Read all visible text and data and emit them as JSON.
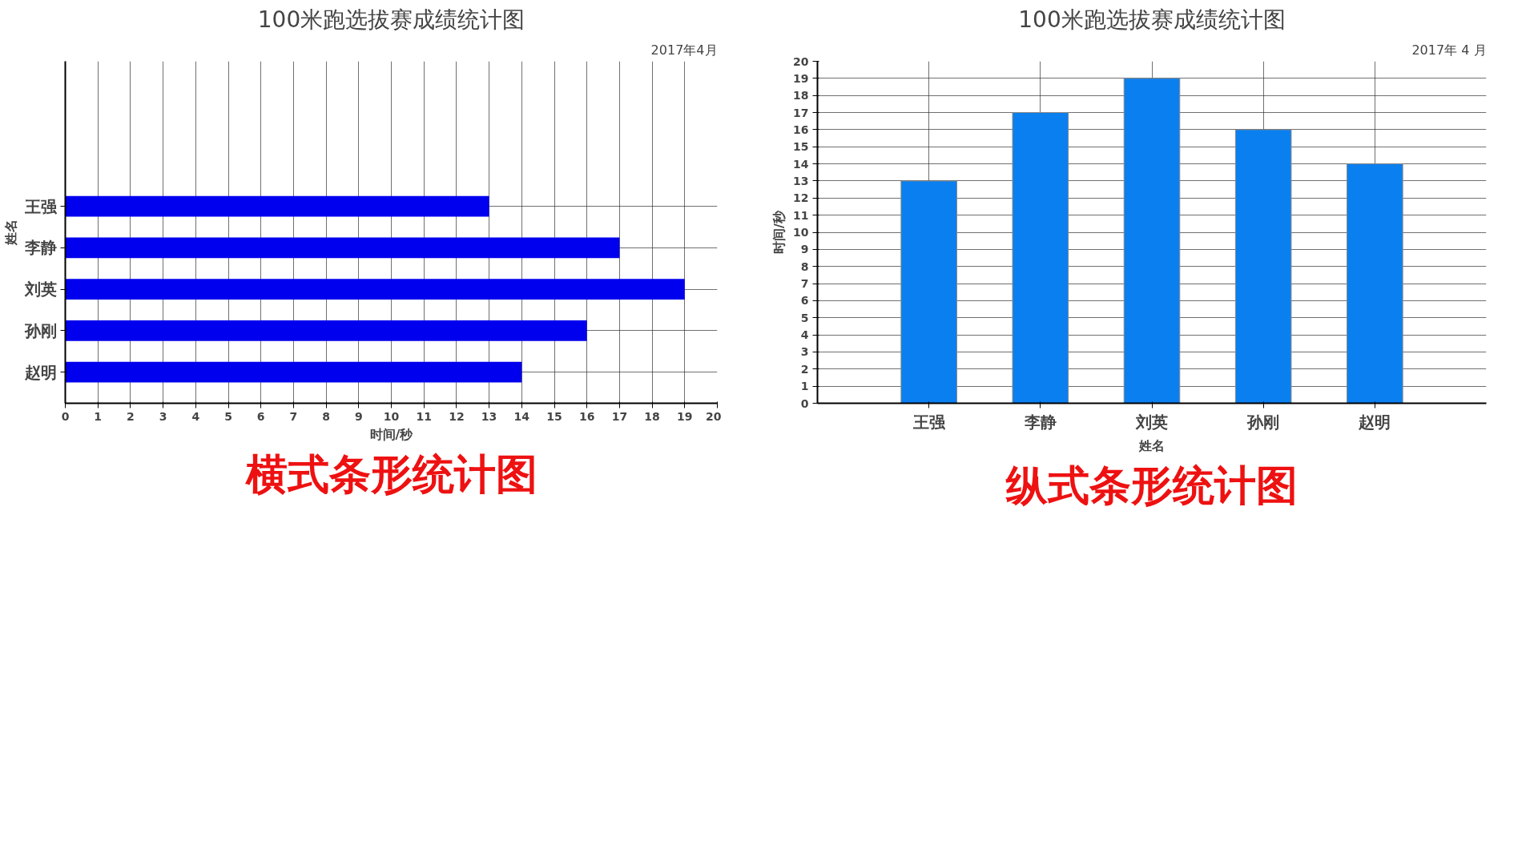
{
  "chart_data": [
    {
      "type": "bar",
      "orientation": "horizontal",
      "title": "100米跑选拔赛成绩统计图",
      "subtitle": "2017年4月",
      "xlabel": "时间/秒",
      "ylabel": "姓名",
      "categories": [
        "王强",
        "李静",
        "刘英",
        "孙刚",
        "赵明"
      ],
      "values": [
        13,
        17,
        19,
        16,
        14
      ],
      "color": "#0000ee",
      "xlim": [
        0,
        20
      ],
      "xticks": [
        0,
        1,
        2,
        3,
        4,
        5,
        6,
        7,
        8,
        9,
        10,
        11,
        12,
        13,
        14,
        15,
        16,
        17,
        18,
        19,
        20
      ],
      "grid": true,
      "annotations": [
        "横式条形统计图"
      ]
    },
    {
      "type": "bar",
      "title": "100米跑选拔赛成绩统计图",
      "subtitle": "2017年 4 月",
      "xlabel": "姓名",
      "ylabel": "时间/秒",
      "categories": [
        "王强",
        "李静",
        "刘英",
        "孙刚",
        "赵明"
      ],
      "values": [
        13,
        17,
        19,
        16,
        14
      ],
      "color": "#0a7ff0",
      "ylim": [
        0,
        20
      ],
      "yticks": [
        0,
        1,
        2,
        3,
        4,
        5,
        6,
        7,
        8,
        9,
        10,
        11,
        12,
        13,
        14,
        15,
        16,
        17,
        18,
        19,
        20
      ],
      "grid": true,
      "annotations": [
        "纵式条形统计图"
      ]
    }
  ]
}
